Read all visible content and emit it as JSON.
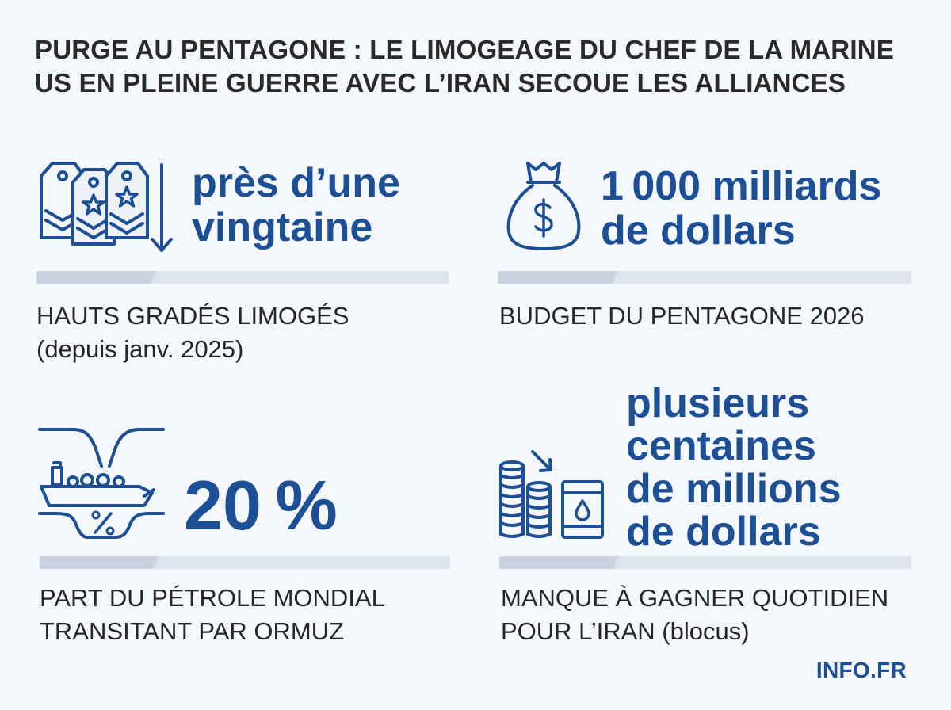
{
  "title": {
    "line1": "PURGE AU PENTAGONE : LE LIMOGEAGE DU CHEF DE LA MARINE",
    "line2": "US EN PLEINE GUERRE AVEC L’IRAN SECOUE LES ALLIANCES"
  },
  "stats": [
    {
      "icon": "military-insignia-down-arrow-icon",
      "figure_lines": [
        "près d’une",
        "vingtaine"
      ],
      "label_lines": [
        "HAUTS GRADÉS LIMOGÉS",
        "(depuis janv. 2025)"
      ]
    },
    {
      "icon": "money-bag-icon",
      "figure_lines": [
        "1 000 milliards",
        "de dollars"
      ],
      "label_lines": [
        "BUDGET DU PENTAGONE 2026"
      ]
    },
    {
      "icon": "oil-tanker-strait-icon",
      "figure_lines": [
        "20 %"
      ],
      "label_lines": [
        "PART DU PÉTROLE MONDIAL",
        "TRANSITANT PAR ORMUZ"
      ]
    },
    {
      "icon": "coins-oil-barrel-icon",
      "figure_lines": [
        "plusieurs",
        "centaines",
        "de millions",
        "de dollars"
      ],
      "label_lines": [
        "MANQUE À GAGNER QUOTIDIEN",
        "POUR L’IRAN (blocus)"
      ]
    }
  ],
  "brand": "INFO.FR",
  "colors": {
    "background": "#f4f7fb",
    "accent": "#1c4f96",
    "text": "#262626"
  }
}
